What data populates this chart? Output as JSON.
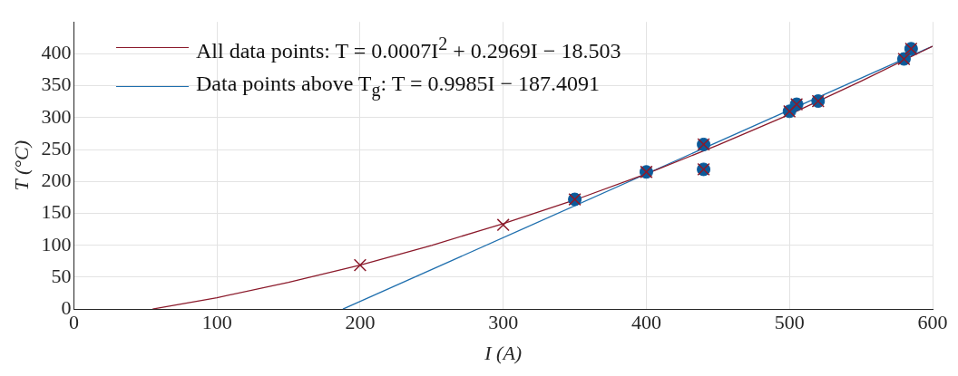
{
  "chart_data": {
    "type": "scatter",
    "xlabel": "I (A)",
    "ylabel": "T (°C)",
    "xlim": [
      0,
      600
    ],
    "xticks": [
      0,
      100,
      200,
      300,
      400,
      500,
      600
    ],
    "ylim": [
      0,
      450
    ],
    "yticks": [
      0,
      50,
      100,
      150,
      200,
      250,
      300,
      350,
      400
    ],
    "grid": true,
    "legend": "top left",
    "series": [
      {
        "type": "scatter",
        "marker": "cross",
        "color": "#8b1a2b",
        "x": [
          200,
          300,
          350,
          400,
          440,
          440,
          500,
          505,
          520,
          580,
          585
        ],
        "values": [
          69,
          132,
          172,
          215,
          258,
          219,
          310,
          321,
          326,
          392,
          408
        ]
      },
      {
        "type": "scatter",
        "marker": "circle",
        "color": "#0b5a9a",
        "x": [
          350,
          400,
          440,
          440,
          500,
          505,
          520,
          580,
          585
        ],
        "values": [
          172,
          215,
          258,
          219,
          310,
          321,
          326,
          392,
          408
        ]
      },
      {
        "type": "line",
        "marker": "none",
        "name": "All data points: T = 0.0007I$^{2}$ + 0.2969I − 18.503",
        "color": "#8b1a2b",
        "x": [
          55,
          100,
          150,
          200,
          250,
          300,
          350,
          400,
          450,
          500,
          550,
          600
        ],
        "values": [
          0,
          18,
          42,
          69,
          100,
          134,
          171,
          212,
          257,
          305,
          357,
          412
        ]
      },
      {
        "type": "line",
        "marker": "none",
        "name": "Data points above T$_{g}$: T = 0.9985I − 187.4091",
        "color": "#1f6fae",
        "x": [
          188,
          600
        ],
        "values": [
          0,
          412
        ]
      }
    ]
  }
}
